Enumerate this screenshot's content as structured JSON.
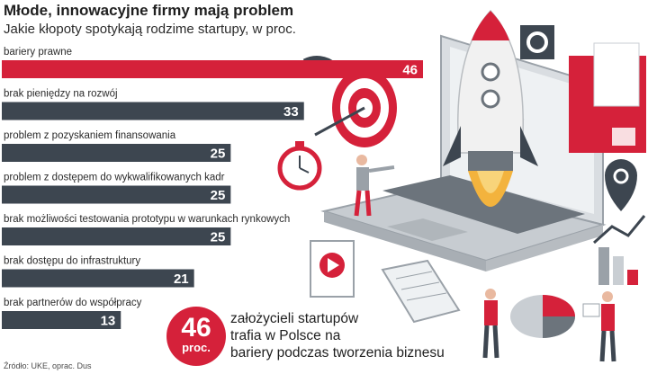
{
  "chart_data": {
    "type": "bar",
    "orientation": "horizontal",
    "title": "Młode, innowacyjne firmy mają problem",
    "subtitle": "Jakie kłopoty spotykają rodzime startupy, w proc.",
    "categories": [
      "bariery prawne",
      "brak pieniędzy na rozwój",
      "problem z pozyskaniem finansowania",
      "problem z dostępem do wykwalifikowanych kadr",
      "brak możliwości testowania prototypu w warunkach rynkowych",
      "brak dostępu do infrastruktury",
      "brak partnerów do współpracy"
    ],
    "values": [
      46,
      33,
      25,
      25,
      25,
      21,
      13
    ],
    "xlim": [
      0,
      46
    ],
    "bar_colors": [
      "#d5213a",
      "#3d4650",
      "#3d4650",
      "#3d4650",
      "#3d4650",
      "#3d4650",
      "#3d4650"
    ]
  },
  "callout": {
    "number": "46",
    "unit": "proc.",
    "lines": [
      "założycieli startupów",
      "trafia w Polsce na",
      "bariery podczas tworzenia biznesu"
    ]
  },
  "source": "Źródło: UKE, oprac. Dus",
  "colors": {
    "accent": "#d5213a",
    "bar_dark": "#3d4650",
    "text": "#2b2b2b"
  }
}
